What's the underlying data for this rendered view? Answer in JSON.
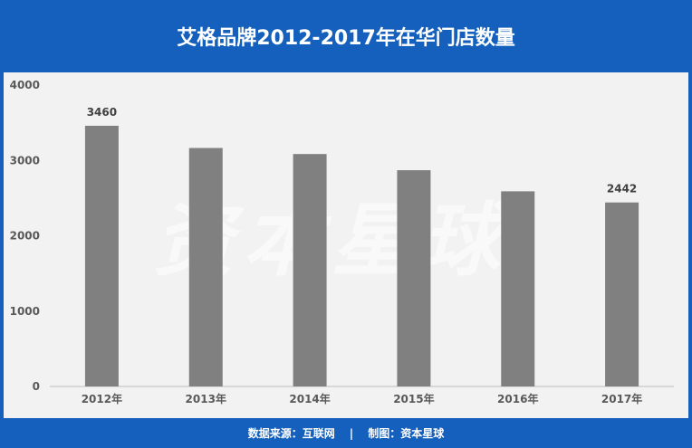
{
  "chart_data": {
    "type": "bar",
    "title": "艾格品牌2012-2017年在华门店数量",
    "categories": [
      "2012年",
      "2013年",
      "2014年",
      "2015年",
      "2016年",
      "2017年"
    ],
    "values": [
      3460,
      3165,
      3085,
      2870,
      2590,
      2442
    ],
    "data_labels": [
      "3460",
      "",
      "",
      "",
      "",
      "2442"
    ],
    "yticks": [
      "0",
      "1000",
      "2000",
      "3000",
      "4000"
    ],
    "ylim": [
      0,
      4000
    ],
    "xlabel": "",
    "ylabel": "",
    "grid": false,
    "bar_color": "#808080"
  },
  "footer": {
    "source": "数据来源：互联网",
    "separator": "|",
    "credit": "制图：资本星球"
  },
  "watermark": "资本星球",
  "colors": {
    "frame": "#1560bd",
    "plot_background": "#f2f2f2"
  }
}
